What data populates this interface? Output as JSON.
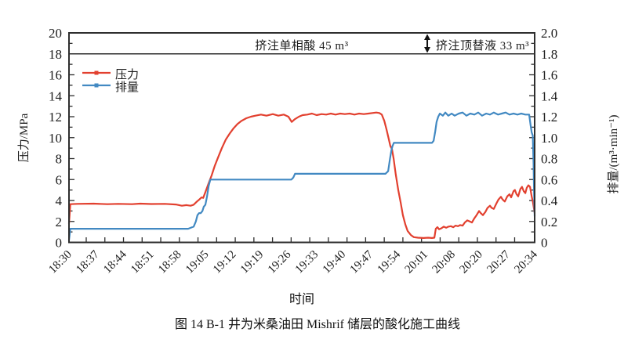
{
  "figure": {
    "caption": "图 14  B-1 井为米桑油田 Mishrif 储层的酸化施工曲线"
  },
  "chart_data": {
    "type": "line",
    "xlabel": "时间",
    "ylabel_left": "压力/MPa",
    "ylabel_right": "排量/(m³·min⁻¹)",
    "x_tick_labels": [
      "18:30",
      "18:37",
      "18:44",
      "18:51",
      "18:58",
      "19:05",
      "19:12",
      "19:19",
      "19:26",
      "19:33",
      "19:40",
      "19:47",
      "19:54",
      "20:01",
      "20:08",
      "20:20",
      "20:27",
      "20:34"
    ],
    "y_left": {
      "min": 0,
      "max": 20,
      "step": 2,
      "labels": [
        "0",
        "2",
        "4",
        "6",
        "8",
        "10",
        "12",
        "14",
        "16",
        "18",
        "20"
      ]
    },
    "y_right": {
      "min": 0,
      "max": 2.0,
      "step": 0.2,
      "labels": [
        "0",
        "0.2",
        "0.4",
        "0.6",
        "0.8",
        "1.0",
        "1.2",
        "1.4",
        "1.6",
        "1.8",
        "2.0"
      ]
    },
    "grid": false,
    "legend_position": "upper-left-inside",
    "annotations": {
      "stage1_label": "挤注单相酸 45 m³",
      "stage2_label": "挤注顶替液 33 m³",
      "band_line_value": 18,
      "band_top_value": 20,
      "divider_slot": 13.08
    },
    "legend": [
      {
        "name": "压力",
        "color": "#e2402f"
      },
      {
        "name": "排量",
        "color": "#4289c2"
      }
    ],
    "series": [
      {
        "name": "压力",
        "axis": "left",
        "color": "#e2402f",
        "x_unit": "tick_slot_index",
        "points": [
          [
            0,
            1.8
          ],
          [
            0.05,
            3.65
          ],
          [
            0.3,
            3.68
          ],
          [
            0.9,
            3.7
          ],
          [
            1.4,
            3.65
          ],
          [
            1.8,
            3.68
          ],
          [
            2.3,
            3.65
          ],
          [
            2.6,
            3.7
          ],
          [
            3.0,
            3.66
          ],
          [
            3.5,
            3.68
          ],
          [
            3.9,
            3.62
          ],
          [
            4.12,
            3.5
          ],
          [
            4.29,
            3.56
          ],
          [
            4.44,
            3.5
          ],
          [
            4.55,
            3.6
          ],
          [
            4.67,
            3.9
          ],
          [
            4.76,
            4.1
          ],
          [
            4.84,
            4.3
          ],
          [
            4.9,
            4.25
          ],
          [
            4.98,
            4.8
          ],
          [
            5.09,
            5.6
          ],
          [
            5.21,
            6.4
          ],
          [
            5.32,
            7.3
          ],
          [
            5.44,
            8.1
          ],
          [
            5.58,
            9.0
          ],
          [
            5.72,
            9.8
          ],
          [
            5.87,
            10.4
          ],
          [
            6.01,
            10.9
          ],
          [
            6.15,
            11.3
          ],
          [
            6.3,
            11.6
          ],
          [
            6.47,
            11.85
          ],
          [
            6.64,
            12.0
          ],
          [
            6.81,
            12.1
          ],
          [
            7.01,
            12.2
          ],
          [
            7.21,
            12.1
          ],
          [
            7.44,
            12.25
          ],
          [
            7.64,
            12.1
          ],
          [
            7.84,
            12.2
          ],
          [
            8.01,
            12.0
          ],
          [
            8.13,
            11.5
          ],
          [
            8.24,
            11.75
          ],
          [
            8.39,
            12.0
          ],
          [
            8.53,
            12.15
          ],
          [
            8.7,
            12.2
          ],
          [
            8.87,
            12.3
          ],
          [
            9.04,
            12.15
          ],
          [
            9.22,
            12.25
          ],
          [
            9.39,
            12.2
          ],
          [
            9.56,
            12.3
          ],
          [
            9.73,
            12.2
          ],
          [
            9.9,
            12.3
          ],
          [
            10.07,
            12.25
          ],
          [
            10.25,
            12.3
          ],
          [
            10.42,
            12.2
          ],
          [
            10.59,
            12.3
          ],
          [
            10.76,
            12.25
          ],
          [
            10.93,
            12.3
          ],
          [
            11.08,
            12.35
          ],
          [
            11.22,
            12.4
          ],
          [
            11.33,
            12.35
          ],
          [
            11.42,
            12.2
          ],
          [
            11.51,
            11.6
          ],
          [
            11.59,
            10.8
          ],
          [
            11.68,
            9.8
          ],
          [
            11.73,
            9.2
          ],
          [
            11.79,
            8.9
          ],
          [
            11.85,
            8.0
          ],
          [
            11.93,
            6.5
          ],
          [
            12.02,
            5.0
          ],
          [
            12.11,
            3.8
          ],
          [
            12.19,
            2.6
          ],
          [
            12.28,
            1.7
          ],
          [
            12.36,
            1.1
          ],
          [
            12.48,
            0.7
          ],
          [
            12.59,
            0.5
          ],
          [
            12.74,
            0.45
          ],
          [
            12.94,
            0.42
          ],
          [
            13.11,
            0.45
          ],
          [
            13.25,
            0.42
          ],
          [
            13.34,
            0.45
          ],
          [
            13.39,
            1.3
          ],
          [
            13.45,
            1.45
          ],
          [
            13.51,
            1.25
          ],
          [
            13.6,
            1.35
          ],
          [
            13.68,
            1.5
          ],
          [
            13.77,
            1.4
          ],
          [
            13.85,
            1.5
          ],
          [
            13.94,
            1.55
          ],
          [
            14.03,
            1.45
          ],
          [
            14.11,
            1.6
          ],
          [
            14.2,
            1.55
          ],
          [
            14.28,
            1.65
          ],
          [
            14.37,
            1.6
          ],
          [
            14.45,
            1.9
          ],
          [
            14.54,
            2.1
          ],
          [
            14.63,
            2.0
          ],
          [
            14.71,
            1.9
          ],
          [
            14.8,
            2.3
          ],
          [
            14.88,
            2.6
          ],
          [
            14.97,
            3.0
          ],
          [
            15.03,
            2.8
          ],
          [
            15.11,
            2.6
          ],
          [
            15.2,
            2.9
          ],
          [
            15.28,
            3.3
          ],
          [
            15.37,
            3.5
          ],
          [
            15.43,
            3.3
          ],
          [
            15.51,
            3.2
          ],
          [
            15.6,
            3.7
          ],
          [
            15.68,
            4.1
          ],
          [
            15.77,
            4.35
          ],
          [
            15.83,
            4.1
          ],
          [
            15.91,
            3.9
          ],
          [
            16.0,
            4.4
          ],
          [
            16.08,
            4.6
          ],
          [
            16.14,
            4.3
          ],
          [
            16.23,
            4.9
          ],
          [
            16.28,
            5.0
          ],
          [
            16.34,
            4.6
          ],
          [
            16.4,
            4.4
          ],
          [
            16.48,
            5.1
          ],
          [
            16.54,
            5.3
          ],
          [
            16.6,
            4.9
          ],
          [
            16.66,
            4.7
          ],
          [
            16.71,
            5.2
          ],
          [
            16.77,
            5.45
          ],
          [
            16.83,
            5.3
          ],
          [
            16.89,
            4.4
          ],
          [
            16.94,
            3.8
          ],
          [
            17,
            2.8
          ]
        ]
      },
      {
        "name": "排量",
        "axis": "right",
        "color": "#4289c2",
        "x_unit": "tick_slot_index",
        "points": [
          [
            0,
            0.02
          ],
          [
            0.05,
            0.13
          ],
          [
            1.0,
            0.13
          ],
          [
            2.0,
            0.13
          ],
          [
            3.0,
            0.13
          ],
          [
            4.0,
            0.13
          ],
          [
            4.35,
            0.13
          ],
          [
            4.55,
            0.15
          ],
          [
            4.63,
            0.2
          ],
          [
            4.69,
            0.26
          ],
          [
            4.75,
            0.28
          ],
          [
            4.81,
            0.28
          ],
          [
            4.87,
            0.3
          ],
          [
            4.92,
            0.34
          ],
          [
            4.98,
            0.36
          ],
          [
            5.04,
            0.44
          ],
          [
            5.1,
            0.54
          ],
          [
            5.16,
            0.6
          ],
          [
            5.5,
            0.6
          ],
          [
            6.2,
            0.6
          ],
          [
            7.0,
            0.6
          ],
          [
            7.8,
            0.6
          ],
          [
            8.12,
            0.6
          ],
          [
            8.19,
            0.62
          ],
          [
            8.25,
            0.655
          ],
          [
            9.0,
            0.655
          ],
          [
            10.0,
            0.655
          ],
          [
            11.0,
            0.655
          ],
          [
            11.55,
            0.655
          ],
          [
            11.65,
            0.68
          ],
          [
            11.72,
            0.8
          ],
          [
            11.77,
            0.88
          ],
          [
            11.81,
            0.92
          ],
          [
            11.86,
            0.95
          ],
          [
            12.3,
            0.95
          ],
          [
            12.8,
            0.95
          ],
          [
            13.25,
            0.95
          ],
          [
            13.31,
            0.97
          ],
          [
            13.37,
            1.06
          ],
          [
            13.42,
            1.15
          ],
          [
            13.48,
            1.2
          ],
          [
            13.54,
            1.23
          ],
          [
            13.65,
            1.21
          ],
          [
            13.74,
            1.24
          ],
          [
            13.85,
            1.21
          ],
          [
            13.97,
            1.23
          ],
          [
            14.08,
            1.21
          ],
          [
            14.23,
            1.23
          ],
          [
            14.37,
            1.24
          ],
          [
            14.51,
            1.21
          ],
          [
            14.65,
            1.23
          ],
          [
            14.8,
            1.22
          ],
          [
            14.94,
            1.24
          ],
          [
            15.08,
            1.21
          ],
          [
            15.23,
            1.23
          ],
          [
            15.37,
            1.22
          ],
          [
            15.51,
            1.24
          ],
          [
            15.66,
            1.22
          ],
          [
            15.8,
            1.23
          ],
          [
            15.94,
            1.24
          ],
          [
            16.08,
            1.22
          ],
          [
            16.23,
            1.23
          ],
          [
            16.37,
            1.22
          ],
          [
            16.51,
            1.23
          ],
          [
            16.66,
            1.22
          ],
          [
            16.8,
            1.22
          ],
          [
            16.85,
            1.12
          ],
          [
            16.89,
            1.05
          ],
          [
            16.93,
            1.02
          ],
          [
            16.96,
            0.75
          ],
          [
            16.98,
            0.45
          ],
          [
            17,
            0.25
          ]
        ]
      }
    ]
  },
  "colors": {
    "frame": "#2e2e2e",
    "tick": "#2e2e2e",
    "text": "#1c1c1c",
    "pressure_line": "#e2402f",
    "rate_line": "#4289c2",
    "arrow": "#111111"
  }
}
